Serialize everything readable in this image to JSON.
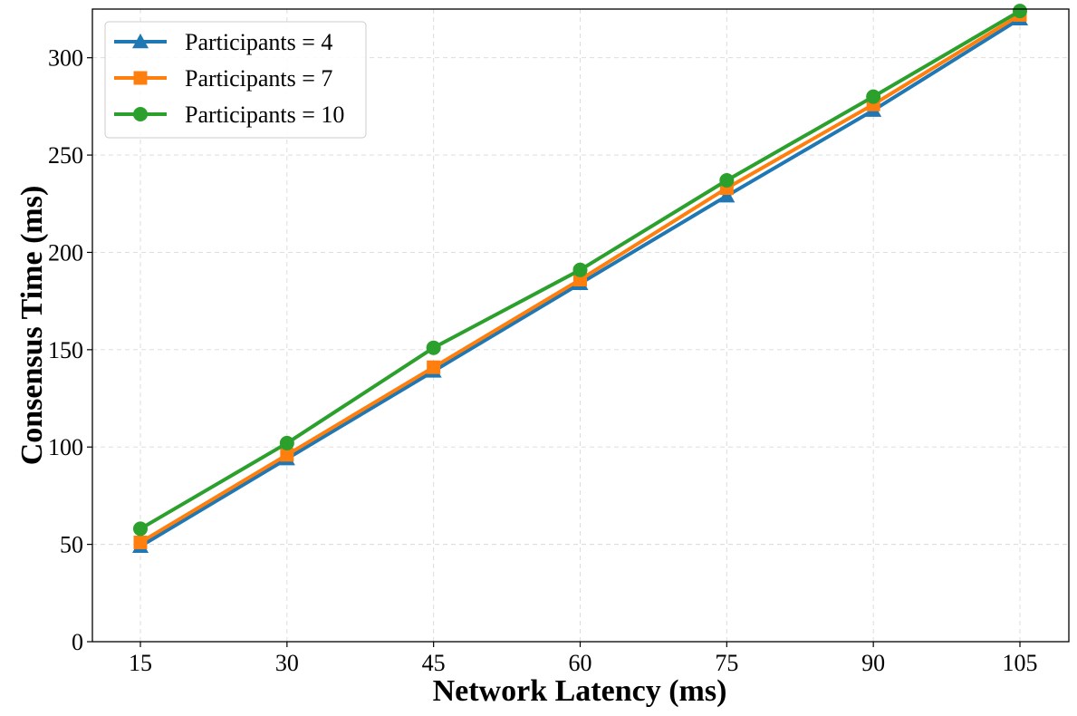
{
  "chart_data": {
    "type": "line",
    "title": "",
    "xlabel": "Network Latency (ms)",
    "ylabel": "Consensus Time (ms)",
    "categories": [
      "15",
      "30",
      "45",
      "60",
      "75",
      "90",
      "105"
    ],
    "yticks": [
      "0",
      "50",
      "100",
      "150",
      "200",
      "250",
      "300"
    ],
    "ylim": [
      0,
      325
    ],
    "grid": true,
    "legend_position": "top-left",
    "series": [
      {
        "name": "Participants = 4",
        "color": "#1f77b4",
        "marker": "triangle",
        "values": [
          49,
          94,
          139,
          184,
          229,
          273,
          320
        ]
      },
      {
        "name": "Participants = 7",
        "color": "#ff7f0e",
        "marker": "square",
        "values": [
          51,
          96,
          141,
          186,
          233,
          276,
          322
        ]
      },
      {
        "name": "Participants = 10",
        "color": "#2ca02c",
        "marker": "circle",
        "values": [
          58,
          102,
          151,
          191,
          237,
          280,
          324
        ]
      }
    ]
  }
}
